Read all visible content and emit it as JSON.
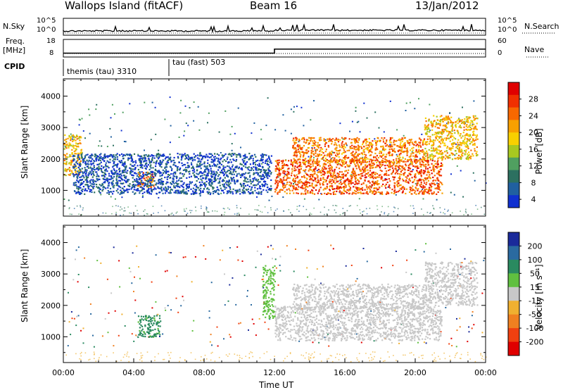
{
  "header": {
    "station": "Wallops Island (fitACF)",
    "beam": "Beam 16",
    "date": "13/Jan/2012"
  },
  "top_panels": {
    "nsky_label": "N.Sky",
    "nsearch_label": "N.Search",
    "nsky_ticks": [
      "10^5",
      "10^0"
    ],
    "nsearch_ticks": [
      "10^5",
      "10^0"
    ],
    "freq_label_line1": "Freq.",
    "freq_label_line2": "[MHz]",
    "freq_ticks": [
      "18",
      "8"
    ],
    "nave_label": "Nave",
    "nave_ticks": [
      "60",
      "0"
    ],
    "cpid_label": "CPID",
    "cpid_segments": [
      {
        "label": "themis (tau) 3310",
        "start_hour": 0.0,
        "end_hour": 6.0
      },
      {
        "label": "tau (fast) 503",
        "start_hour": 6.0,
        "end_hour": 24.0
      }
    ]
  },
  "power_colorbar": {
    "label": "Power [dB]",
    "ticks": [
      "28",
      "24",
      "20",
      "16",
      "12",
      "8",
      "4"
    ],
    "colors": [
      "#e00000",
      "#f03000",
      "#f86800",
      "#f8a000",
      "#f8d000",
      "#a8c820",
      "#50a060",
      "#2c7060",
      "#2060a0",
      "#1030d0"
    ]
  },
  "velocity_colorbar": {
    "label": "Velocity [m s⁻¹]",
    "ticks": [
      "200",
      "100",
      "50",
      "15",
      "-15",
      "-50",
      "-100",
      "-200"
    ],
    "colors": [
      "#1a2a9a",
      "#2a6aa0",
      "#2a8a60",
      "#60c040",
      "#c8c8c8",
      "#f0b030",
      "#f08020",
      "#f04010",
      "#e00000"
    ]
  },
  "x_axis": {
    "ticks": [
      "00:00",
      "04:00",
      "08:00",
      "12:00",
      "16:00",
      "20:00",
      "00:00"
    ],
    "label": "Time UT"
  },
  "chart_data": [
    {
      "type": "heatmap",
      "title": "Power",
      "xlabel": "Time UT",
      "ylabel": "Slant Range [km]",
      "x_range_hours": [
        0,
        24
      ],
      "ylim": [
        180,
        4550
      ],
      "yticks": [
        1000,
        2000,
        3000,
        4000
      ],
      "colorbar_label": "Power [dB]",
      "colorbar_ticks": [
        4,
        8,
        12,
        16,
        20,
        24,
        28
      ],
      "regions": [
        {
          "t": [
            0.0,
            1.0
          ],
          "range": [
            1500,
            2800
          ],
          "power": 22
        },
        {
          "t": [
            4.2,
            5.2
          ],
          "range": [
            1100,
            1600
          ],
          "power": 26
        },
        {
          "t": [
            0.5,
            11.8
          ],
          "range": [
            900,
            2200
          ],
          "power": 8
        },
        {
          "t": [
            12.0,
            21.5
          ],
          "range": [
            900,
            2000
          ],
          "power": 28
        },
        {
          "t": [
            13.0,
            20.5
          ],
          "range": [
            1900,
            2700
          ],
          "power": 26
        },
        {
          "t": [
            20.5,
            23.5
          ],
          "range": [
            2000,
            3400
          ],
          "power": 22
        }
      ]
    },
    {
      "type": "heatmap",
      "title": "Velocity",
      "xlabel": "Time UT",
      "ylabel": "Slant Range [km]",
      "x_range_hours": [
        0,
        24
      ],
      "ylim": [
        180,
        4550
      ],
      "yticks": [
        1000,
        2000,
        3000,
        4000
      ],
      "colorbar_label": "Velocity [m s⁻¹]",
      "colorbar_ticks": [
        -200,
        -100,
        -50,
        -15,
        15,
        50,
        100,
        200
      ],
      "regions": [
        {
          "t": [
            4.2,
            5.5
          ],
          "range": [
            1000,
            1700
          ],
          "velocity": 60
        },
        {
          "t": [
            11.3,
            12.0
          ],
          "range": [
            1600,
            3300
          ],
          "velocity": 30
        },
        {
          "t": [
            12.0,
            21.5
          ],
          "range": [
            900,
            2000
          ],
          "velocity": 0
        },
        {
          "t": [
            13.0,
            20.5
          ],
          "range": [
            1900,
            2700
          ],
          "velocity": 0
        },
        {
          "t": [
            20.5,
            23.5
          ],
          "range": [
            2000,
            3400
          ],
          "velocity": 0
        }
      ]
    }
  ]
}
